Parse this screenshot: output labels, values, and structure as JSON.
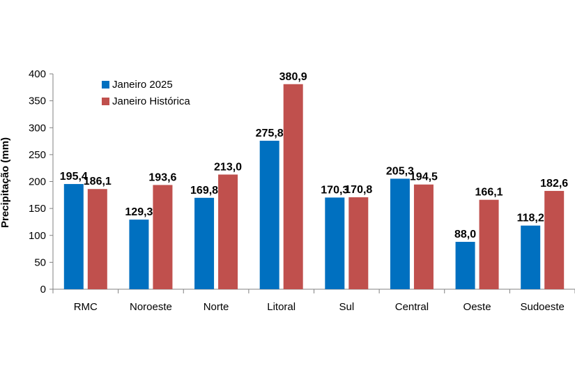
{
  "chart_data": {
    "type": "bar",
    "title": "",
    "xlabel": "",
    "ylabel": "Precipitação (mm)",
    "ylim": [
      0,
      400
    ],
    "yticks": [
      0,
      50,
      100,
      150,
      200,
      250,
      300,
      350,
      400
    ],
    "categories": [
      "RMC",
      "Noroeste",
      "Norte",
      "Litoral",
      "Sul",
      "Central",
      "Oeste",
      "Sudoeste"
    ],
    "series": [
      {
        "name": "Janeiro 2025",
        "color": "#0070C0",
        "values": [
          195.4,
          129.3,
          169.8,
          275.8,
          170.3,
          205.3,
          88.0,
          118.2
        ],
        "labels": [
          "195,4",
          "129,3",
          "169,8",
          "275,8",
          "170,3",
          "205,3",
          "88,0",
          "118,2"
        ]
      },
      {
        "name": "Janeiro Histórica",
        "color": "#C0504D",
        "values": [
          186.1,
          193.6,
          213.0,
          380.9,
          170.8,
          194.5,
          166.1,
          182.6
        ],
        "labels": [
          "186,1",
          "193,6",
          "213,0",
          "380,9",
          "170,8",
          "194,5",
          "166,1",
          "182,6"
        ]
      }
    ],
    "grid": false,
    "legend_position": "top-left"
  }
}
